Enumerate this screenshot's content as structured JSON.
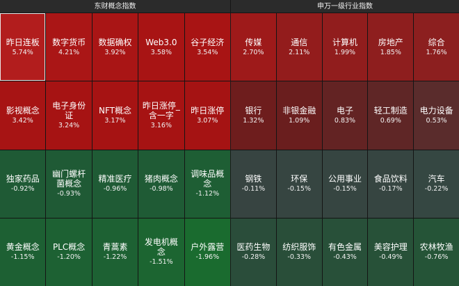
{
  "headers": {
    "left": "东财概念指数",
    "right": "申万一级行业指数"
  },
  "left_tiles": [
    {
      "name": "昨日连板",
      "pct": "5.74%",
      "color": "#b21d1d",
      "selected": true
    },
    {
      "name": "数字货币",
      "pct": "4.21%",
      "color": "#aa1616"
    },
    {
      "name": "数据确权",
      "pct": "3.92%",
      "color": "#a91515"
    },
    {
      "name": "Web3.0",
      "pct": "3.58%",
      "color": "#a81414"
    },
    {
      "name": "谷子经济",
      "pct": "3.54%",
      "color": "#a81414"
    },
    {
      "name": "影视概念",
      "pct": "3.42%",
      "color": "#a71414"
    },
    {
      "name": "电子身份证",
      "pct": "3.24%",
      "color": "#a61313"
    },
    {
      "name": "NFT概念",
      "pct": "3.17%",
      "color": "#a61313"
    },
    {
      "name": "昨日涨停_含一字",
      "pct": "3.16%",
      "color": "#a61313"
    },
    {
      "name": "昨日涨停",
      "pct": "3.07%",
      "color": "#a51313"
    },
    {
      "name": "独家药品",
      "pct": "-0.92%",
      "color": "#1f5a35"
    },
    {
      "name": "幽门螺杆菌概念",
      "pct": "-0.93%",
      "color": "#1f5a35"
    },
    {
      "name": "精准医疗",
      "pct": "-0.96%",
      "color": "#1f5b35"
    },
    {
      "name": "猪肉概念",
      "pct": "-0.98%",
      "color": "#1f5b35"
    },
    {
      "name": "调味品概念",
      "pct": "-1.12%",
      "color": "#1e5e34"
    },
    {
      "name": "黄金概念",
      "pct": "-1.15%",
      "color": "#1d6033"
    },
    {
      "name": "PLC概念",
      "pct": "-1.20%",
      "color": "#1d6133"
    },
    {
      "name": "青蒿素",
      "pct": "-1.22%",
      "color": "#1d6133"
    },
    {
      "name": "发电机概念",
      "pct": "-1.51%",
      "color": "#1c6531"
    },
    {
      "name": "户外露营",
      "pct": "-1.96%",
      "color": "#1a6b2f"
    }
  ],
  "right_tiles": [
    {
      "name": "传媒",
      "pct": "2.70%",
      "color": "#9e1a1a"
    },
    {
      "name": "通信",
      "pct": "2.11%",
      "color": "#931c1c"
    },
    {
      "name": "计算机",
      "pct": "1.99%",
      "color": "#911d1d"
    },
    {
      "name": "房地产",
      "pct": "1.85%",
      "color": "#8e1e1e"
    },
    {
      "name": "综合",
      "pct": "1.76%",
      "color": "#8c1f1f"
    },
    {
      "name": "银行",
      "pct": "1.32%",
      "color": "#6e1d1d"
    },
    {
      "name": "非银金融",
      "pct": "1.09%",
      "color": "#6a1e1e"
    },
    {
      "name": "电子",
      "pct": "0.83%",
      "color": "#632323"
    },
    {
      "name": "轻工制造",
      "pct": "0.69%",
      "color": "#5f2626"
    },
    {
      "name": "电力设备",
      "pct": "0.53%",
      "color": "#5a2c2c"
    },
    {
      "name": "钢铁",
      "pct": "-0.11%",
      "color": "#374441"
    },
    {
      "name": "环保",
      "pct": "-0.15%",
      "color": "#364541"
    },
    {
      "name": "公用事业",
      "pct": "-0.15%",
      "color": "#364541"
    },
    {
      "name": "食品饮料",
      "pct": "-0.17%",
      "color": "#364541"
    },
    {
      "name": "汽车",
      "pct": "-0.22%",
      "color": "#354742"
    },
    {
      "name": "医药生物",
      "pct": "-0.28%",
      "color": "#2a4d3a"
    },
    {
      "name": "纺织服饰",
      "pct": "-0.33%",
      "color": "#294e39"
    },
    {
      "name": "有色金属",
      "pct": "-0.43%",
      "color": "#285039"
    },
    {
      "name": "美容护理",
      "pct": "-0.49%",
      "color": "#275138"
    },
    {
      "name": "农林牧渔",
      "pct": "-0.76%",
      "color": "#255437"
    }
  ]
}
